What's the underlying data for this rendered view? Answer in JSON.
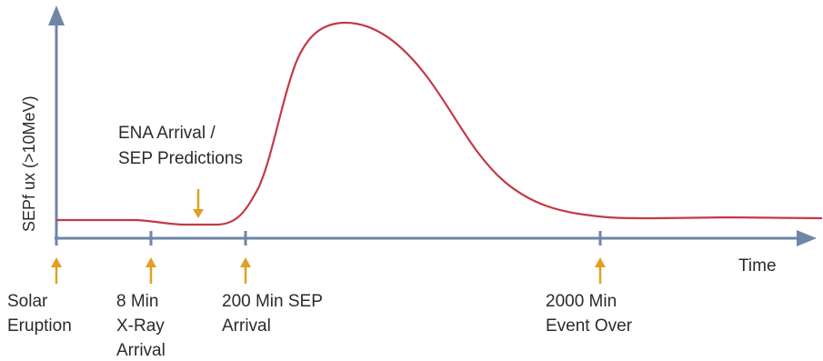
{
  "y_axis_label": "SEPf ux (>10MeV)",
  "x_axis_label": "Time",
  "ena_annotation": [
    "ENA Arrival /",
    "SEP Predictions"
  ],
  "milestones": [
    {
      "id": "solar-eruption",
      "lines": [
        "Solar",
        "Eruption"
      ],
      "time": 0
    },
    {
      "id": "8-min",
      "lines": [
        "8 Min",
        "X-Ray",
        "Arrival"
      ],
      "time": 8
    },
    {
      "id": "200-min",
      "lines": [
        "200 Min SEP",
        "Arrival"
      ],
      "time": 200
    },
    {
      "id": "2000-min",
      "lines": [
        "2000 Min",
        "Event Over"
      ],
      "time": 2000
    }
  ],
  "colors": {
    "axis": "#6f86a6",
    "curve": "#c23a45",
    "arrow": "#e0a020",
    "text": "#2b2b2b"
  }
}
